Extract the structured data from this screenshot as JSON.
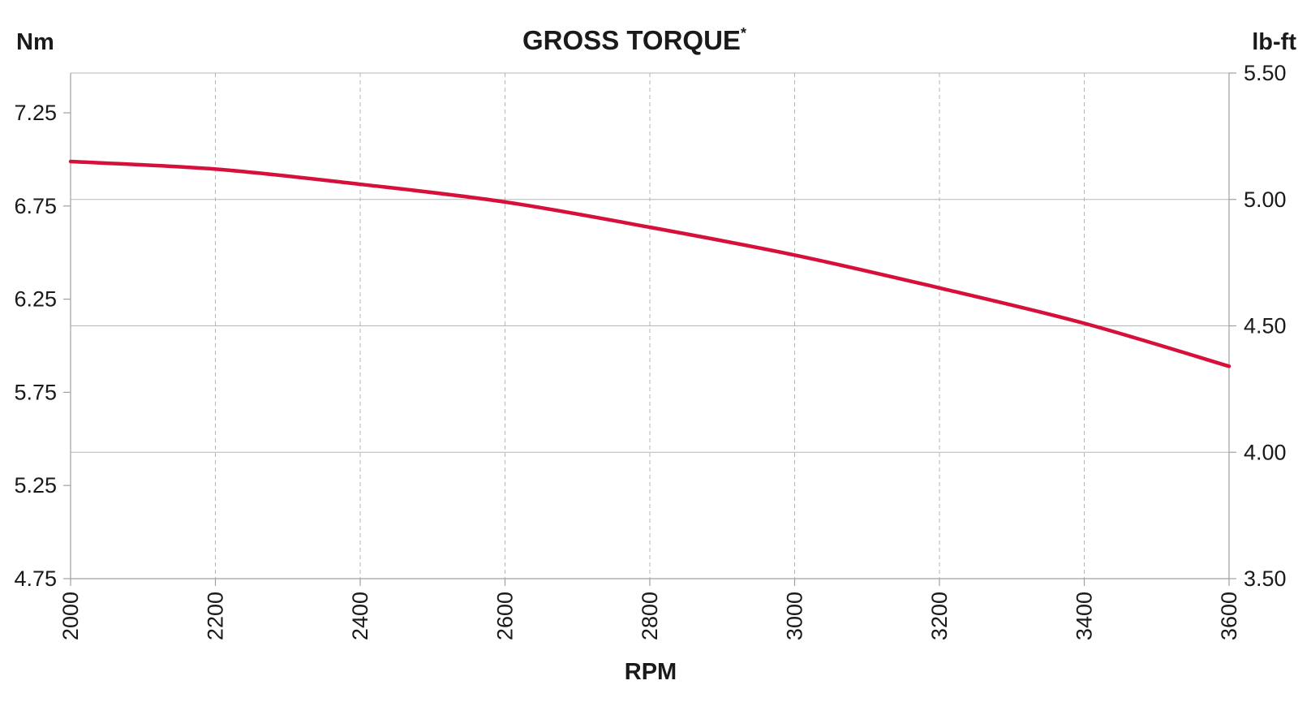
{
  "chart_data": {
    "type": "line",
    "title": "GROSS TORQUE",
    "title_mark": "*",
    "xlabel": "RPM",
    "y_left_unit": "Nm",
    "y_right_unit": "lb-ft",
    "grid": true,
    "x_ticks": [
      "2000",
      "2200",
      "2400",
      "2600",
      "2800",
      "3000",
      "3200",
      "3400",
      "3600"
    ],
    "xlim": [
      2000,
      3600
    ],
    "y_left_ticks": [
      "4.75",
      "5.25",
      "5.75",
      "6.25",
      "6.75",
      "7.25"
    ],
    "y_right_ticks": [
      "3.50",
      "4.00",
      "4.50",
      "5.00",
      "5.50"
    ],
    "y_right_lim": [
      3.5,
      5.5
    ],
    "series": [
      {
        "color": "#d6103b",
        "axis": "right",
        "x": [
          2000,
          2200,
          2400,
          2600,
          2800,
          3000,
          3200,
          3400,
          3600
        ],
        "y": [
          5.15,
          5.12,
          5.06,
          4.99,
          4.89,
          4.78,
          4.65,
          4.51,
          4.34
        ]
      }
    ]
  }
}
